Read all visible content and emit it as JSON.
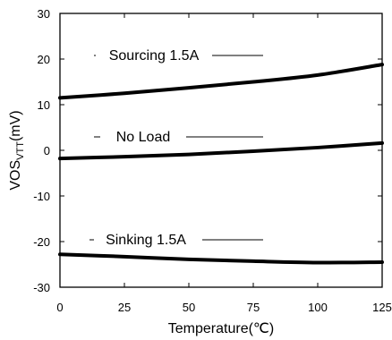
{
  "chart_data": {
    "type": "line",
    "title": "",
    "xlabel": "Temperature(℃)",
    "ylabel": {
      "main": "VOS",
      "subscript": "VTT",
      "suffix": "(mV)"
    },
    "xlim": [
      0,
      125
    ],
    "ylim": [
      -30,
      30
    ],
    "xticks": [
      0,
      25,
      50,
      75,
      100,
      125
    ],
    "yticks": [
      -30,
      -20,
      -10,
      0,
      10,
      20,
      30
    ],
    "grid": false,
    "line_color": "#000000",
    "series": [
      {
        "label": "Sourcing 1.5A",
        "x": [
          0,
          25,
          50,
          75,
          100,
          125
        ],
        "y": [
          11.5,
          12.5,
          13.7,
          15.0,
          16.5,
          18.8
        ]
      },
      {
        "label": "No Load",
        "x": [
          0,
          25,
          50,
          75,
          100,
          125
        ],
        "y": [
          -1.8,
          -1.4,
          -0.9,
          -0.2,
          0.6,
          1.6
        ]
      },
      {
        "label": "Sinking 1.5A",
        "x": [
          0,
          25,
          50,
          75,
          100,
          125
        ],
        "y": [
          -22.8,
          -23.3,
          -23.9,
          -24.3,
          -24.6,
          -24.5
        ]
      }
    ]
  }
}
